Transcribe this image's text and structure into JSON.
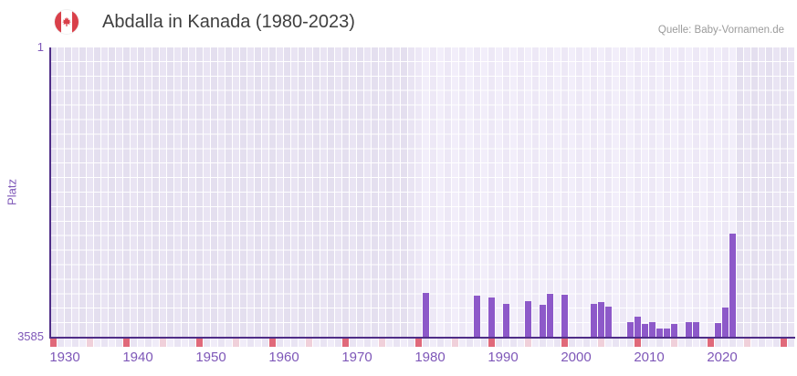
{
  "header": {
    "title": "Abdalla in Kanada (1980-2023)",
    "source": "Quelle: Baby-Vornamen.de",
    "flag_icon": "canada-flag-icon"
  },
  "y_axis": {
    "label": "Platz",
    "top_tick": "1",
    "bottom_tick": "3585"
  },
  "x_axis": {
    "tick_labels": [
      "1930",
      "1940",
      "1950",
      "1960",
      "1970",
      "1980",
      "1990",
      "2000",
      "2010",
      "2020"
    ]
  },
  "chart_data": {
    "type": "bar",
    "title": "Abdalla in Kanada (1980-2023)",
    "xlabel": "",
    "ylabel": "Platz",
    "x_domain": [
      1929,
      2030
    ],
    "ylim": [
      3585,
      1
    ],
    "y_inverted_rank_scale": true,
    "grid": true,
    "legend": "none",
    "data_era": {
      "first_year_with_coverage": 1980,
      "last_year_with_coverage": 2022
    },
    "series": [
      {
        "name": "Platz von Abdalla",
        "points": [
          {
            "year": 1980,
            "rank": 3030
          },
          {
            "year": 1987,
            "rank": 3065
          },
          {
            "year": 1989,
            "rank": 3090
          },
          {
            "year": 1991,
            "rank": 3170
          },
          {
            "year": 1994,
            "rank": 3135
          },
          {
            "year": 1996,
            "rank": 3180
          },
          {
            "year": 1997,
            "rank": 3040
          },
          {
            "year": 1999,
            "rank": 3055
          },
          {
            "year": 2003,
            "rank": 3170
          },
          {
            "year": 2004,
            "rank": 3145
          },
          {
            "year": 2005,
            "rank": 3200
          },
          {
            "year": 2008,
            "rank": 3395
          },
          {
            "year": 2009,
            "rank": 3325
          },
          {
            "year": 2010,
            "rank": 3415
          },
          {
            "year": 2011,
            "rank": 3395
          },
          {
            "year": 2012,
            "rank": 3470
          },
          {
            "year": 2013,
            "rank": 3470
          },
          {
            "year": 2014,
            "rank": 3415
          },
          {
            "year": 2016,
            "rank": 3395
          },
          {
            "year": 2017,
            "rank": 3395
          },
          {
            "year": 2020,
            "rank": 3405
          },
          {
            "year": 2021,
            "rank": 3215
          },
          {
            "year": 2022,
            "rank": 2300
          }
        ]
      }
    ]
  },
  "strip_markers": {
    "description": "year strip under axis: red marker every 10th cell, pink marker offset 5",
    "red_cell_interval": 10,
    "pink_cell_offset": 5
  },
  "colors": {
    "bar": "#8d59c9",
    "axis_line": "#4f2d87",
    "axis_labels": "#7e57b8",
    "title_text": "#3f3f3f",
    "source_text": "#9b9b9b",
    "plot_bg_light": "#f0ebf8",
    "plot_bg_dim": "#e6e1f1",
    "strip_red": "#e0697a",
    "strip_pink": "#f0d0da",
    "strip_default_a": "#f0ecf8",
    "strip_default_b": "#e9e4f3",
    "flag_red": "#d9404a"
  }
}
